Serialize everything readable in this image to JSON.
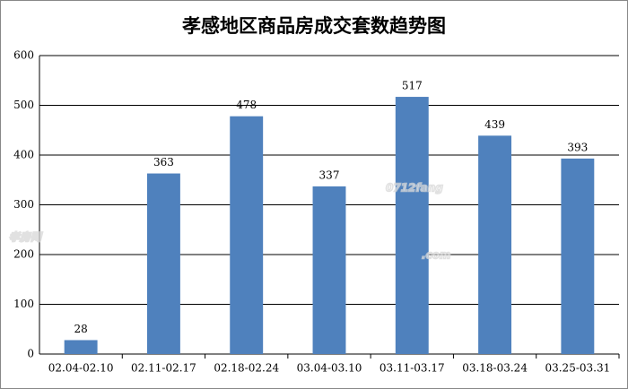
{
  "chart_data": {
    "type": "bar",
    "title": "孝感地区商品房成交套数趋势图",
    "categories": [
      "02.04-02.10",
      "02.11-02.17",
      "02.18-02.24",
      "03.04-03.10",
      "03.11-03.17",
      "03.18-03.24",
      "03.25-03.31"
    ],
    "values": [
      28,
      363,
      478,
      337,
      517,
      439,
      393
    ],
    "color": "#4f81bd",
    "ylim": [
      0,
      600
    ],
    "yticks": [
      0,
      100,
      200,
      300,
      400,
      500,
      600
    ],
    "grid": true,
    "watermark": [
      "孝房网",
      "0712fang",
      ".com"
    ]
  }
}
